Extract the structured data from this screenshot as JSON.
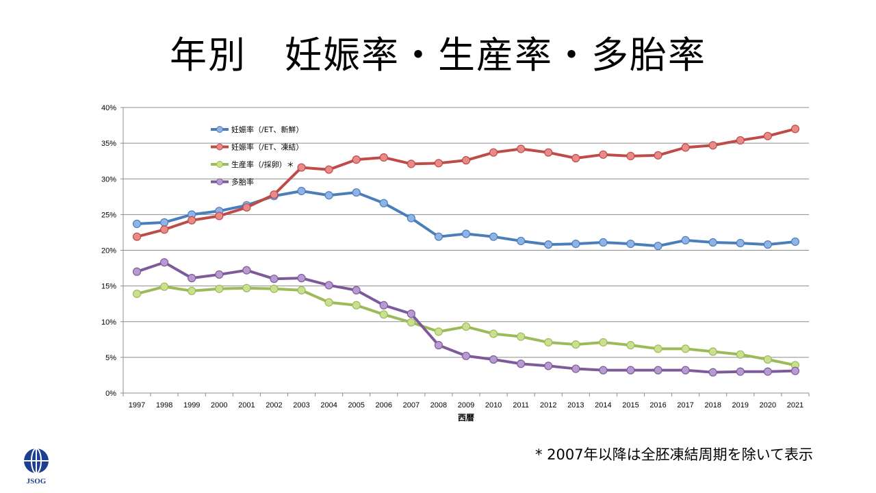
{
  "slide": {
    "title": "年別　妊娠率・生産率・多胎率",
    "footnote": "* 2007年以降は全胚凍結周期を除いて表示",
    "logo_text": "JSOG"
  },
  "chart_data": {
    "type": "line",
    "title": "",
    "xlabel": "西暦",
    "ylabel": "",
    "ylim": [
      0,
      40
    ],
    "y_ticks": [
      0,
      5,
      10,
      15,
      20,
      25,
      30,
      35,
      40
    ],
    "y_tick_labels": [
      "0%",
      "5%",
      "10%",
      "15%",
      "20%",
      "25%",
      "30%",
      "35%",
      "40%"
    ],
    "grid": true,
    "legend_position": "top-left",
    "x": [
      "1997",
      "1998",
      "1999",
      "2000",
      "2001",
      "2002",
      "2003",
      "2004",
      "2005",
      "2006",
      "2007",
      "2008",
      "2009",
      "2010",
      "2011",
      "2012",
      "2013",
      "2014",
      "2015",
      "2016",
      "2017",
      "2018",
      "2019",
      "2020",
      "2021"
    ],
    "series": [
      {
        "name": "妊娠率（/ET、新鮮）",
        "color": "#4a7ebb",
        "marker": "#8fb3e6",
        "values": [
          23.7,
          23.9,
          25.0,
          25.5,
          26.3,
          27.6,
          28.3,
          27.7,
          28.1,
          26.6,
          24.5,
          21.9,
          22.3,
          21.9,
          21.3,
          20.8,
          20.9,
          21.1,
          20.9,
          20.6,
          21.4,
          21.1,
          21.0,
          20.8,
          21.2
        ]
      },
      {
        "name": "妊娠率（/ET、凍結）",
        "color": "#be4b48",
        "marker": "#e88a88",
        "values": [
          21.9,
          22.9,
          24.2,
          24.8,
          26.0,
          27.8,
          31.6,
          31.3,
          32.7,
          33.0,
          32.1,
          32.2,
          32.6,
          33.7,
          34.2,
          33.7,
          32.9,
          33.4,
          33.2,
          33.3,
          34.4,
          34.7,
          35.4,
          36.0,
          37.0
        ]
      },
      {
        "name": "生産率（/採卵）＊",
        "color": "#9bbb59",
        "marker": "#c9e08e",
        "values": [
          13.9,
          14.9,
          14.3,
          14.6,
          14.7,
          14.6,
          14.4,
          12.7,
          12.3,
          11.0,
          9.9,
          8.6,
          9.3,
          8.3,
          7.9,
          7.1,
          6.8,
          7.1,
          6.7,
          6.2,
          6.2,
          5.8,
          5.4,
          4.7,
          3.9
        ]
      },
      {
        "name": "多胎率",
        "color": "#7d5b9a",
        "marker": "#b79ad0",
        "values": [
          17.0,
          18.3,
          16.1,
          16.6,
          17.2,
          16.0,
          16.1,
          15.1,
          14.4,
          12.3,
          11.1,
          6.7,
          5.2,
          4.7,
          4.1,
          3.8,
          3.4,
          3.2,
          3.2,
          3.2,
          3.2,
          2.9,
          3.0,
          3.0,
          3.1
        ]
      }
    ]
  }
}
